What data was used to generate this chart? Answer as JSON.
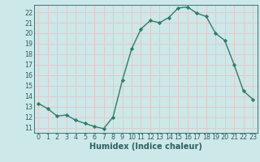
{
  "x": [
    0,
    1,
    2,
    3,
    4,
    5,
    6,
    7,
    8,
    9,
    10,
    11,
    12,
    13,
    14,
    15,
    16,
    17,
    18,
    19,
    20,
    21,
    22,
    23
  ],
  "y": [
    13.3,
    12.8,
    12.1,
    12.2,
    11.7,
    11.4,
    11.1,
    10.9,
    12.0,
    15.5,
    18.5,
    20.4,
    21.2,
    21.0,
    21.5,
    22.4,
    22.5,
    21.9,
    21.6,
    20.0,
    19.3,
    17.0,
    14.5,
    13.7
  ],
  "line_color": "#2e7d6e",
  "marker": "D",
  "marker_size": 2.2,
  "bg_color": "#cce8e8",
  "grid_color": "#e8c8c8",
  "xlabel": "Humidex (Indice chaleur)",
  "xlim": [
    -0.5,
    23.5
  ],
  "ylim": [
    10.5,
    22.7
  ],
  "yticks": [
    11,
    12,
    13,
    14,
    15,
    16,
    17,
    18,
    19,
    20,
    21,
    22
  ],
  "xticks": [
    0,
    1,
    2,
    3,
    4,
    5,
    6,
    7,
    8,
    9,
    10,
    11,
    12,
    13,
    14,
    15,
    16,
    17,
    18,
    19,
    20,
    21,
    22,
    23
  ],
  "font_color": "#2e6060",
  "tick_label_fontsize": 5.8,
  "xlabel_fontsize": 7.0,
  "linewidth": 1.0
}
